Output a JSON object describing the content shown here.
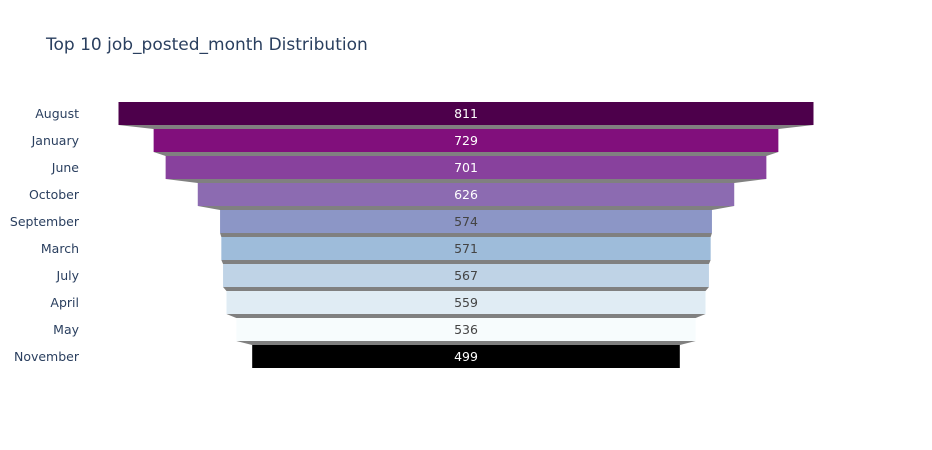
{
  "chart_data": {
    "type": "funnel",
    "title": "Top 10 job_posted_month Distribution",
    "categories": [
      "August",
      "January",
      "June",
      "October",
      "September",
      "March",
      "July",
      "April",
      "May",
      "November"
    ],
    "values": [
      811,
      729,
      701,
      626,
      574,
      571,
      567,
      559,
      536,
      499
    ],
    "colors": [
      "#4d004b",
      "#810f7c",
      "#88419d",
      "#8c6bb1",
      "#8c96c6",
      "#9ebcda",
      "#bfd3e6",
      "#e0ecf4",
      "#f7fcfd",
      "#000000"
    ],
    "value_label_colors": [
      "#ffffff",
      "#ffffff",
      "#ffffff",
      "#ffffff",
      "#444444",
      "#444444",
      "#444444",
      "#444444",
      "#444444",
      "#ffffff"
    ],
    "connector_color": "#808080"
  }
}
